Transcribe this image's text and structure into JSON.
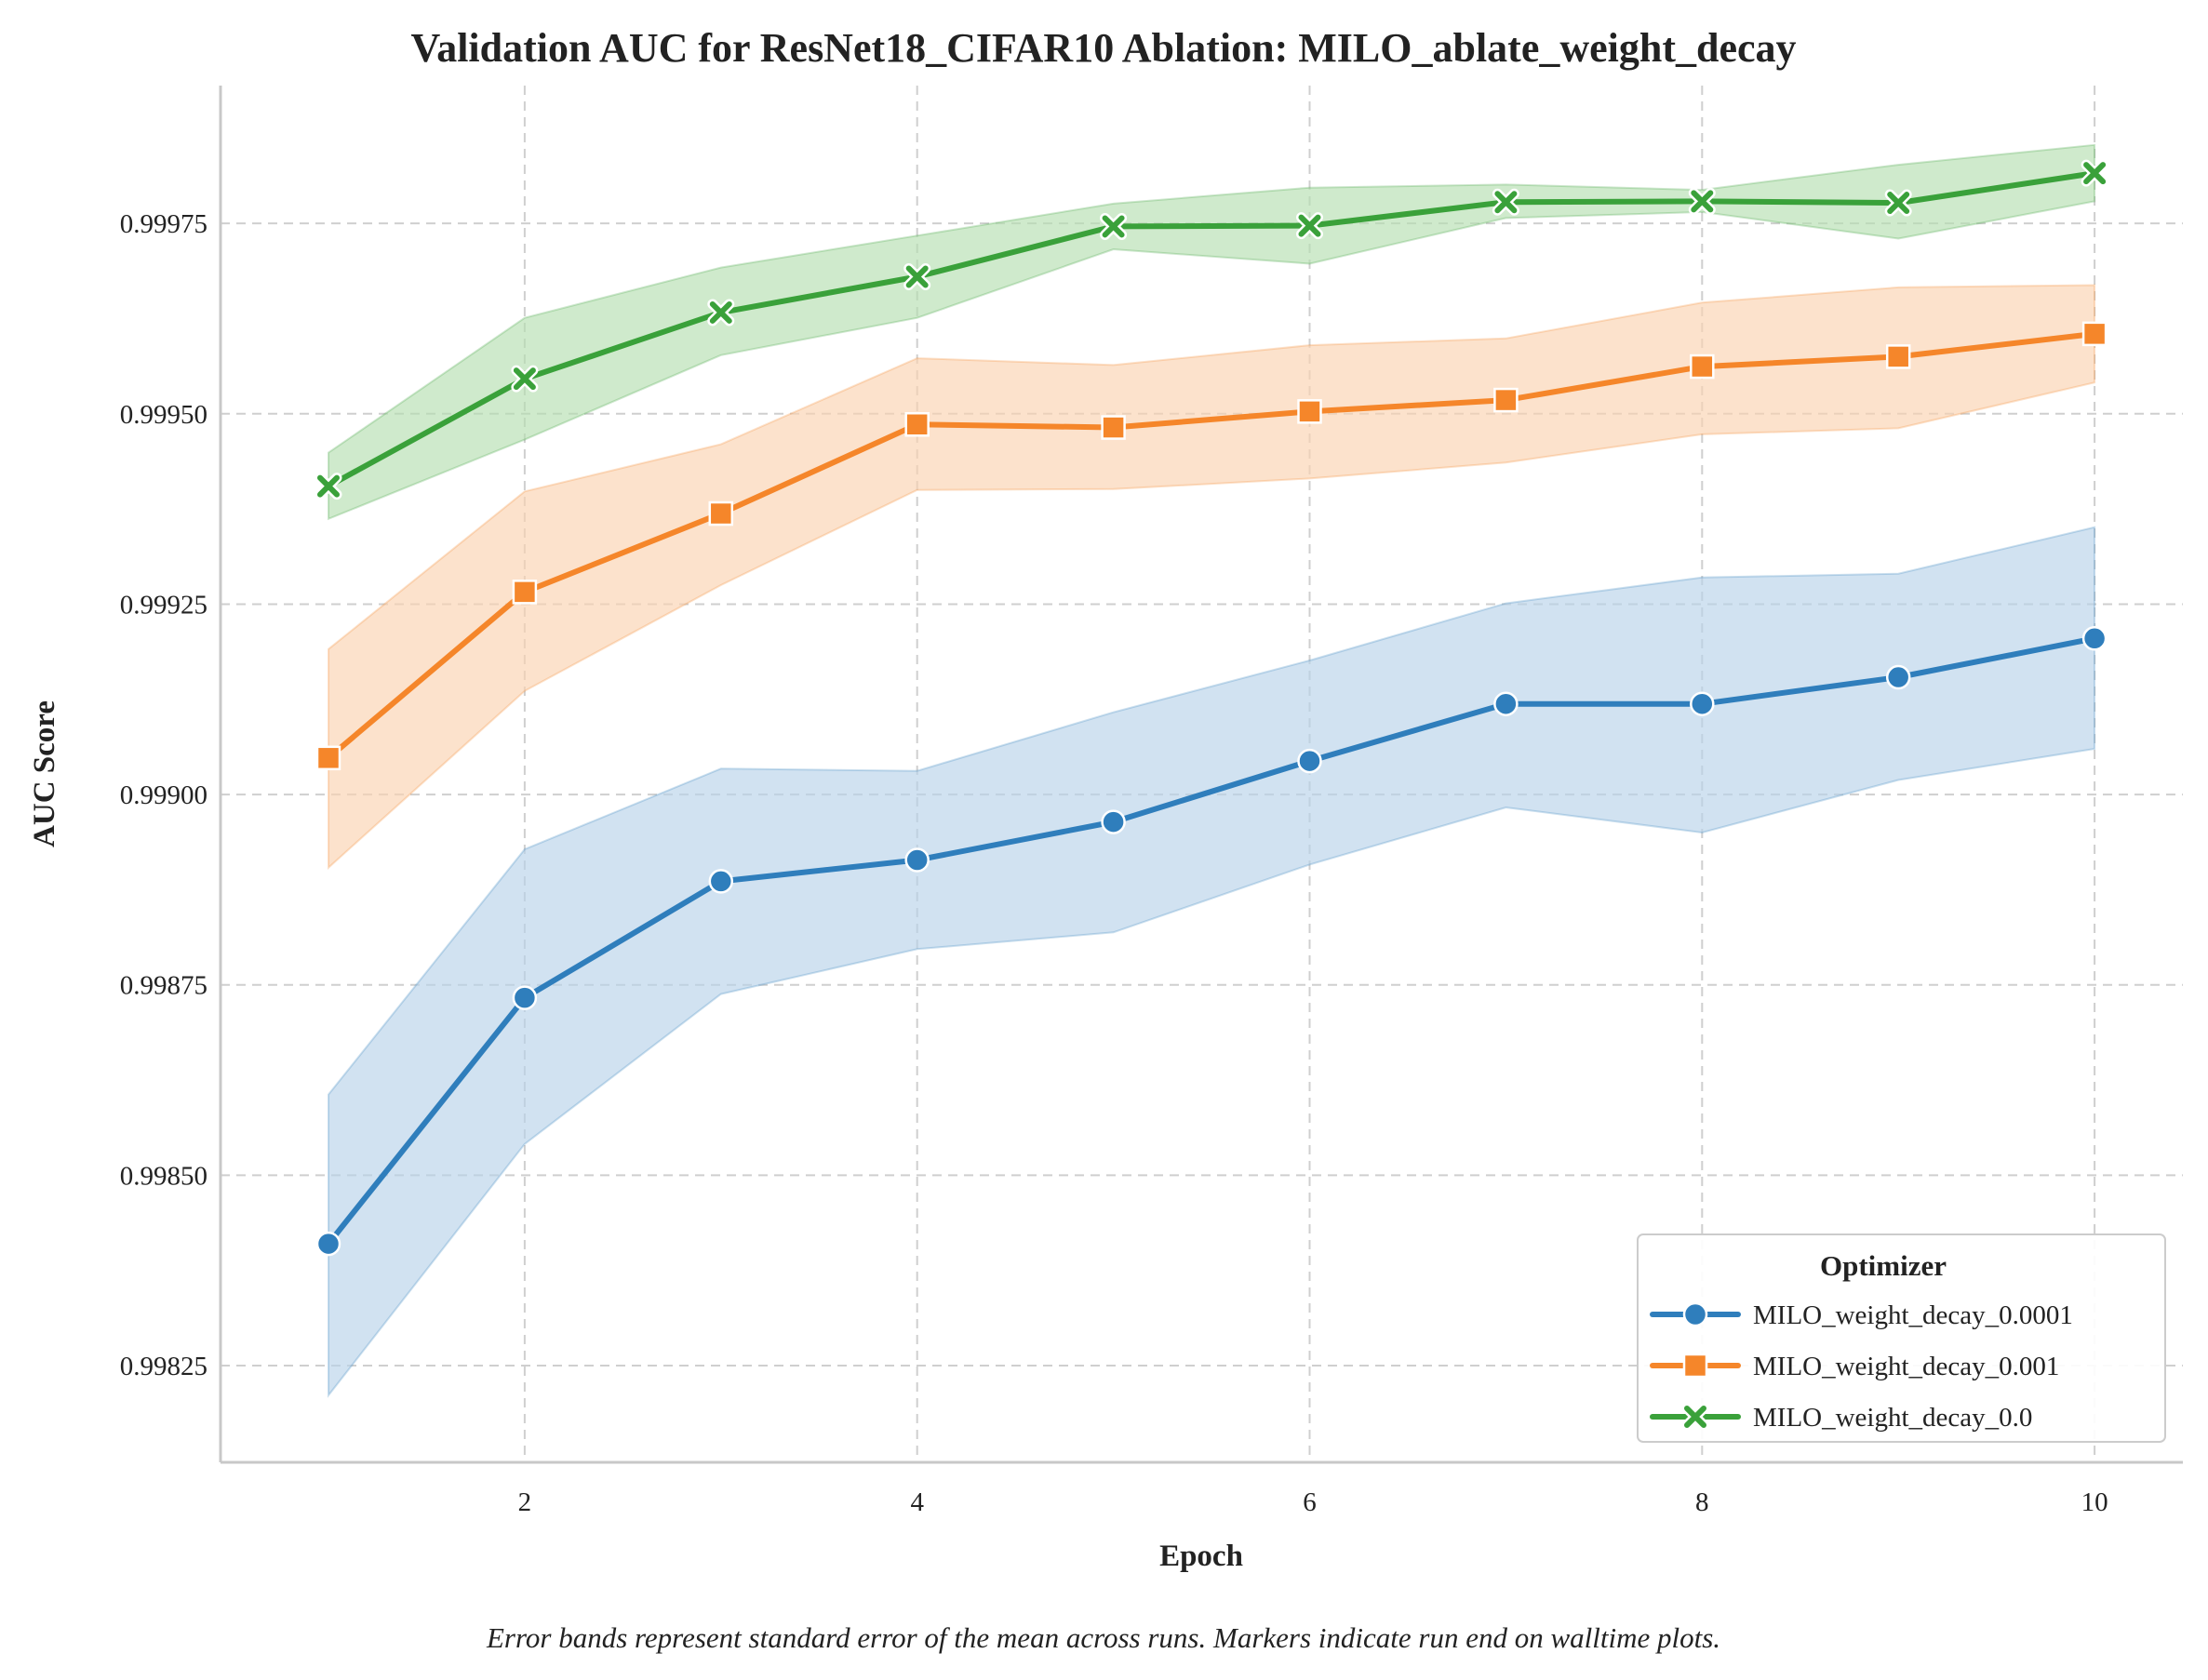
{
  "chart_data": {
    "type": "line",
    "title": "Validation AUC for ResNet18_CIFAR10 Ablation: MILO_ablate_weight_decay",
    "xlabel": "Epoch",
    "ylabel": "AUC Score",
    "caption": "Error bands represent standard error of the mean across runs. Markers indicate run end on walltime plots.",
    "x": [
      1,
      2,
      3,
      4,
      5,
      6,
      7,
      8,
      9,
      10
    ],
    "xlim": [
      0.45,
      10.45
    ],
    "ylim": [
      0.998123,
      0.999931
    ],
    "xticks": [
      2,
      4,
      6,
      8,
      10
    ],
    "xtick_labels": [
      "2",
      "4",
      "6",
      "8",
      "10"
    ],
    "yticks": [
      0.99825,
      0.9985,
      0.99875,
      0.999,
      0.99925,
      0.9995,
      0.99975
    ],
    "ytick_labels": [
      "0.99825",
      "0.99850",
      "0.99875",
      "0.99900",
      "0.99925",
      "0.99950",
      "0.99975"
    ],
    "grid": true,
    "legend": {
      "title": "Optimizer",
      "placement": "bottom-right"
    },
    "series": [
      {
        "name": "MILO_weight_decay_0.0001",
        "color": "#2f7ebc",
        "band_color": "#b8d3ea",
        "marker": "circle",
        "values": [
          0.99841,
          0.998733,
          0.998886,
          0.998914,
          0.998964,
          0.999044,
          0.999119,
          0.999119,
          0.999154,
          0.999205
        ],
        "upper": [
          0.998606,
          0.998928,
          0.999034,
          0.999031,
          0.999108,
          0.999176,
          0.999251,
          0.999285,
          0.99929,
          0.999351
        ],
        "lower": [
          0.998211,
          0.998541,
          0.998738,
          0.998797,
          0.998819,
          0.998908,
          0.998983,
          0.99895,
          0.999019,
          0.99906
        ]
      },
      {
        "name": "MILO_weight_decay_0.001",
        "color": "#f5862a",
        "band_color": "#fbd2b1",
        "marker": "square",
        "values": [
          0.999048,
          0.999266,
          0.999369,
          0.999486,
          0.999482,
          0.999503,
          0.999518,
          0.999562,
          0.999575,
          0.999605
        ],
        "upper": [
          0.999191,
          0.999398,
          0.99946,
          0.999573,
          0.999564,
          0.99959,
          0.999599,
          0.999646,
          0.999666,
          0.999669
        ],
        "lower": [
          0.998904,
          0.999136,
          0.999275,
          0.9994,
          0.999401,
          0.999415,
          0.999436,
          0.999473,
          0.999481,
          0.999541
        ]
      },
      {
        "name": "MILO_weight_decay_0.0",
        "color": "#3aa13a",
        "band_color": "#b6dfb1",
        "marker": "x",
        "values": [
          0.999405,
          0.999546,
          0.999633,
          0.99968,
          0.999746,
          0.999747,
          0.999778,
          0.999779,
          0.999777,
          0.999816
        ],
        "upper": [
          0.999449,
          0.999626,
          0.999692,
          0.999734,
          0.999776,
          0.999797,
          0.999801,
          0.999794,
          0.999827,
          0.999853
        ],
        "lower": [
          0.999362,
          0.999466,
          0.999577,
          0.999626,
          0.999716,
          0.999697,
          0.999757,
          0.999765,
          0.99973,
          0.999779
        ]
      }
    ]
  }
}
